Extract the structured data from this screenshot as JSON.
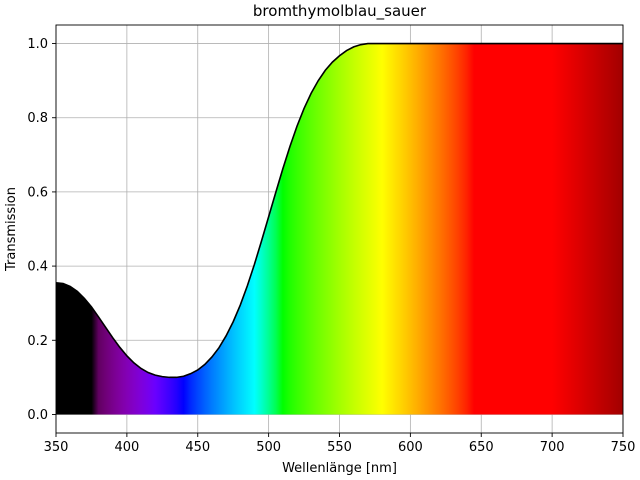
{
  "chart_data": {
    "type": "area",
    "title": "bromthymolblau_sauer",
    "xlabel": "Wellenlänge [nm]",
    "ylabel": "Transmission",
    "xlim": [
      350,
      750
    ],
    "ylim": [
      -0.05,
      1.05
    ],
    "xticks": [
      350,
      400,
      450,
      500,
      550,
      600,
      650,
      700,
      750
    ],
    "yticks": [
      0.0,
      0.2,
      0.4,
      0.6,
      0.8,
      1.0
    ],
    "xtick_labels": [
      "350",
      "400",
      "450",
      "500",
      "550",
      "600",
      "650",
      "700",
      "750"
    ],
    "ytick_labels": [
      "0.0",
      "0.2",
      "0.4",
      "0.6",
      "0.8",
      "1.0"
    ],
    "grid": true,
    "fill": "visible-spectrum colour gradient under curve",
    "line_color": "#000000",
    "series": [
      {
        "x": [
          350,
          355,
          360,
          365,
          370,
          375,
          380,
          385,
          390,
          395,
          400,
          405,
          410,
          415,
          420,
          425,
          430,
          435,
          440,
          445,
          450,
          455,
          460,
          465,
          470,
          475,
          480,
          485,
          490,
          495,
          500,
          505,
          510,
          515,
          520,
          525,
          530,
          535,
          540,
          545,
          550,
          555,
          560,
          565,
          570,
          575,
          580,
          600,
          650,
          700,
          750
        ],
        "y": [
          0.355,
          0.353,
          0.345,
          0.332,
          0.313,
          0.29,
          0.263,
          0.235,
          0.207,
          0.181,
          0.158,
          0.139,
          0.124,
          0.113,
          0.106,
          0.102,
          0.1,
          0.1,
          0.103,
          0.11,
          0.12,
          0.135,
          0.155,
          0.18,
          0.212,
          0.25,
          0.295,
          0.347,
          0.405,
          0.468,
          0.533,
          0.598,
          0.662,
          0.722,
          0.777,
          0.825,
          0.866,
          0.9,
          0.928,
          0.95,
          0.967,
          0.981,
          0.991,
          0.997,
          1.0,
          1.0,
          1.0,
          1.0,
          1.0,
          1.0,
          1.0
        ]
      }
    ]
  }
}
